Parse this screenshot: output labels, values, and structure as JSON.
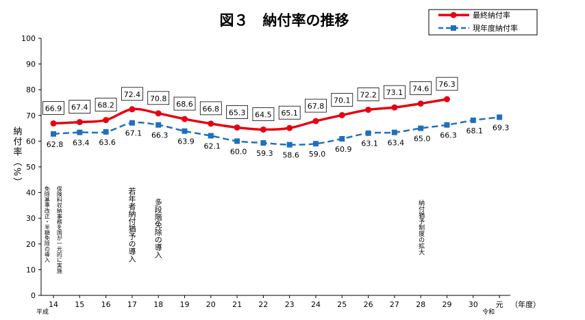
{
  "chart_data": {
    "type": "line",
    "title": "図３　納付率の推移",
    "ylabel": "納付率（%）",
    "xlabel_unit": "（年度）",
    "era_heisei": "平成",
    "era_reiwa": "令和",
    "ylim": [
      0,
      100
    ],
    "yticks": [
      0,
      10,
      20,
      30,
      40,
      50,
      60,
      70,
      80,
      90,
      100
    ],
    "categories": [
      "14",
      "15",
      "16",
      "17",
      "18",
      "19",
      "20",
      "21",
      "22",
      "23",
      "24",
      "25",
      "26",
      "27",
      "28",
      "29",
      "30",
      "元"
    ],
    "grid": false,
    "legend_position": "top-right",
    "series": [
      {
        "name": "最終納付率",
        "color": "#e60012",
        "style": "solid",
        "marker": "circle",
        "labels_boxed": true,
        "values": [
          66.9,
          67.4,
          68.2,
          72.4,
          70.8,
          68.6,
          66.8,
          65.3,
          64.5,
          65.1,
          67.8,
          70.1,
          72.2,
          73.1,
          74.6,
          76.3,
          null,
          null
        ],
        "labels": [
          "66.9",
          "67.4",
          "68.2",
          "72.4",
          "70.8",
          "68.6",
          "66.8",
          "65.3",
          "64.5",
          "65.1",
          "67.8",
          "70.1",
          "72.2",
          "73.1",
          "74.6",
          "76.3",
          null,
          null
        ]
      },
      {
        "name": "現年度納付率",
        "color": "#1f6fbf",
        "style": "dashed",
        "marker": "square",
        "labels_boxed": false,
        "values": [
          62.8,
          63.4,
          63.6,
          67.1,
          66.3,
          63.9,
          62.1,
          60.0,
          59.3,
          58.6,
          59.0,
          60.9,
          63.1,
          63.4,
          65.0,
          66.3,
          68.1,
          69.3
        ],
        "labels": [
          "62.8",
          "63.4",
          "63.6",
          "67.1",
          "66.3",
          "63.9",
          "62.1",
          "60.0",
          "59.3",
          "58.6",
          "59.0",
          "60.9",
          "63.1",
          "63.4",
          "65.0",
          "66.3",
          "68.1",
          "69.3"
        ]
      }
    ],
    "annotations": [
      {
        "category": "14",
        "lines": [
          "保険料収納事務を国が一元的に実施",
          "免除基準改正・半額免除の導入"
        ]
      },
      {
        "category": "17",
        "lines": [
          "若年者納付猶予の導入"
        ]
      },
      {
        "category": "18",
        "lines": [
          "多段階免除の導入"
        ]
      },
      {
        "category": "28",
        "lines": [
          "納付猶予制度の拡大"
        ]
      }
    ]
  }
}
